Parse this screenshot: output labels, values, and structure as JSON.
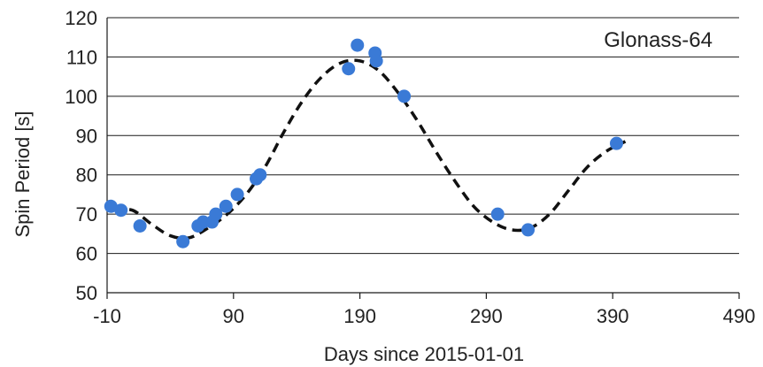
{
  "chart_data": {
    "type": "scatter",
    "title": "",
    "annotation": "Glonass-64",
    "xlabel": "Days since 2015-01-01",
    "ylabel": "Spin Period [s]",
    "xlim": [
      -10,
      490
    ],
    "ylim": [
      50,
      120
    ],
    "x_ticks": [
      -10,
      90,
      190,
      290,
      390,
      490
    ],
    "y_ticks": [
      50,
      60,
      70,
      80,
      90,
      100,
      110,
      120
    ],
    "grid": "horizontal",
    "legend": "none",
    "series": [
      {
        "kind": "points",
        "color": "#3a7ad6",
        "x": [
          -7,
          1,
          16,
          50,
          62,
          66,
          73,
          76,
          84,
          93,
          108,
          111,
          181,
          188,
          202,
          203,
          225,
          299,
          323,
          393
        ],
        "y": [
          72,
          71,
          67,
          63,
          67,
          68,
          68,
          70,
          72,
          75,
          79,
          80,
          107,
          113,
          111,
          109,
          100,
          70,
          66,
          88
        ]
      },
      {
        "kind": "fit",
        "style": "dashed",
        "color": "#111111",
        "x": [
          -5,
          10,
          25,
          40,
          55,
          70,
          85,
          100,
          115,
          130,
          145,
          160,
          175,
          190,
          205,
          220,
          235,
          250,
          265,
          280,
          295,
          310,
          325,
          340,
          355,
          370,
          385,
          400
        ],
        "y": [
          71,
          71,
          67.5,
          64.5,
          64,
          66.5,
          70,
          75,
          82,
          91,
          99,
          105,
          108.5,
          109,
          106.5,
          101,
          94,
          86,
          78.5,
          72,
          68,
          66,
          66.5,
          70,
          76,
          82,
          86,
          88.5
        ]
      }
    ]
  }
}
